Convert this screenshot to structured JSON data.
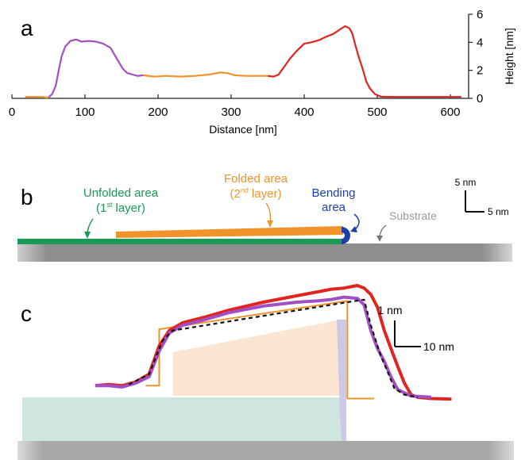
{
  "figure": {
    "panel_labels": [
      "a",
      "b",
      "c"
    ],
    "colors": {
      "purple": "#a24fc6",
      "orange": "#f0932b",
      "red": "#e0241f",
      "green": "#1a9a57",
      "blue": "#1f3fa8",
      "substrate_gray": "#8e8e8e",
      "substrate_text": "#9a9a9a",
      "teal_fill": "#cfe6e0",
      "peach_fill": "#fbe3cf",
      "lavender_fill": "#c9c3e6"
    }
  },
  "chart_data": [
    {
      "panel": "a",
      "type": "line",
      "xlabel": "Distance [nm]",
      "ylabel": "Height [nm]",
      "xlim": [
        0,
        625
      ],
      "ylim": [
        0,
        6
      ],
      "x_ticks": [
        "0",
        "100",
        "200",
        "300",
        "400",
        "500",
        "600"
      ],
      "y_ticks": [
        "0",
        "2",
        "4",
        "6"
      ],
      "y_axis_side": "right",
      "grid": false,
      "series": [
        {
          "color": "orange",
          "points": [
            [
              18,
              0.1
            ],
            [
              25,
              0.1
            ],
            [
              40,
              0.1
            ],
            [
              50,
              0.05
            ]
          ]
        },
        {
          "color": "purple",
          "points": [
            [
              50,
              0.05
            ],
            [
              55,
              0.3
            ],
            [
              60,
              0.9
            ],
            [
              64,
              2.0
            ],
            [
              68,
              3.0
            ],
            [
              73,
              3.7
            ],
            [
              80,
              4.1
            ],
            [
              88,
              4.2
            ],
            [
              95,
              4.05
            ],
            [
              105,
              4.1
            ],
            [
              115,
              4.05
            ],
            [
              125,
              3.9
            ],
            [
              135,
              3.6
            ],
            [
              145,
              2.7
            ],
            [
              152,
              2.1
            ],
            [
              158,
              1.8
            ],
            [
              165,
              1.7
            ],
            [
              172,
              1.6
            ],
            [
              180,
              1.65
            ]
          ]
        },
        {
          "color": "orange",
          "points": [
            [
              180,
              1.65
            ],
            [
              195,
              1.55
            ],
            [
              210,
              1.6
            ],
            [
              230,
              1.55
            ],
            [
              250,
              1.6
            ],
            [
              270,
              1.7
            ],
            [
              285,
              1.85
            ],
            [
              295,
              1.8
            ],
            [
              305,
              1.65
            ],
            [
              320,
              1.6
            ],
            [
              340,
              1.6
            ],
            [
              350,
              1.6
            ]
          ]
        },
        {
          "color": "red",
          "points": [
            [
              350,
              1.6
            ],
            [
              358,
              1.55
            ],
            [
              365,
              1.7
            ],
            [
              372,
              2.2
            ],
            [
              380,
              2.8
            ],
            [
              390,
              3.4
            ],
            [
              400,
              3.9
            ],
            [
              410,
              4.0
            ],
            [
              420,
              4.15
            ],
            [
              430,
              4.4
            ],
            [
              440,
              4.6
            ],
            [
              450,
              4.95
            ],
            [
              456,
              5.15
            ],
            [
              462,
              5.0
            ],
            [
              466,
              4.6
            ],
            [
              470,
              3.8
            ],
            [
              475,
              2.9
            ],
            [
              480,
              2.1
            ],
            [
              485,
              1.2
            ],
            [
              490,
              0.7
            ],
            [
              497,
              0.3
            ],
            [
              505,
              0.12
            ],
            [
              520,
              0.1
            ],
            [
              560,
              0.1
            ],
            [
              600,
              0.1
            ],
            [
              615,
              0.1
            ]
          ]
        }
      ]
    },
    {
      "panel": "b",
      "type": "diagram",
      "labels": {
        "unfolded_line1": "Unfolded area",
        "unfolded_line2": "(1",
        "unfolded_sup": "st",
        "unfolded_line2_end": " layer)",
        "folded_line1": "Folded area",
        "folded_line2": "(2",
        "folded_sup": "nd",
        "folded_line2_end": " layer)",
        "bending_line1": "Bending",
        "bending_line2": "area",
        "substrate": "Substrate",
        "scale_v": "5 nm",
        "scale_h": "5 nm"
      }
    },
    {
      "panel": "c",
      "type": "line",
      "scale_v": "1 nm",
      "scale_h": "10 nm",
      "series": [
        {
          "color": "red",
          "points": [
            [
              0,
              3.85
            ],
            [
              4,
              3.9
            ],
            [
              8,
              3.85
            ],
            [
              12,
              4.0
            ],
            [
              16,
              4.3
            ],
            [
              19,
              5.4
            ],
            [
              22,
              6.0
            ],
            [
              26,
              6.3
            ],
            [
              32,
              6.5
            ],
            [
              40,
              6.8
            ],
            [
              50,
              7.1
            ],
            [
              60,
              7.35
            ],
            [
              66,
              7.5
            ],
            [
              70,
              7.6
            ],
            [
              74,
              7.65
            ],
            [
              78,
              7.75
            ],
            [
              80,
              7.65
            ],
            [
              82,
              7.4
            ],
            [
              84,
              6.9
            ],
            [
              86,
              6.0
            ],
            [
              88,
              5.3
            ],
            [
              90,
              4.6
            ],
            [
              92,
              3.95
            ],
            [
              94,
              3.5
            ],
            [
              96,
              3.4
            ],
            [
              100,
              3.35
            ],
            [
              106,
              3.33
            ]
          ]
        },
        {
          "color": "purple",
          "points": [
            [
              0,
              3.85
            ],
            [
              4,
              3.85
            ],
            [
              8,
              3.8
            ],
            [
              12,
              3.95
            ],
            [
              16,
              4.2
            ],
            [
              19,
              5.2
            ],
            [
              22,
              5.9
            ],
            [
              26,
              6.2
            ],
            [
              32,
              6.4
            ],
            [
              40,
              6.7
            ],
            [
              50,
              6.95
            ],
            [
              60,
              7.1
            ],
            [
              66,
              7.15
            ],
            [
              70,
              7.2
            ],
            [
              74,
              7.3
            ],
            [
              78,
              7.25
            ],
            [
              80,
              7.0
            ],
            [
              82,
              6.0
            ],
            [
              84,
              5.3
            ],
            [
              86,
              4.8
            ],
            [
              88,
              4.2
            ],
            [
              90,
              3.7
            ],
            [
              94,
              3.45
            ],
            [
              100,
              3.4
            ]
          ]
        },
        {
          "color": "black_dashed",
          "points": [
            [
              10,
              3.9
            ],
            [
              16,
              4.3
            ],
            [
              20,
              5.6
            ],
            [
              23,
              6.0
            ],
            [
              28,
              6.1
            ],
            [
              75,
              7.1
            ],
            [
              80,
              7.2
            ],
            [
              82,
              6.2
            ],
            [
              85,
              5.0
            ],
            [
              87,
              4.4
            ],
            [
              89,
              3.75
            ],
            [
              92,
              3.5
            ],
            [
              96,
              3.4
            ]
          ]
        },
        {
          "color": "orange_step",
          "points": [
            [
              15,
              3.85
            ],
            [
              19,
              3.85
            ],
            [
              19,
              6.05
            ],
            [
              75,
              7.15
            ],
            [
              75,
              3.35
            ],
            [
              83,
              3.35
            ]
          ]
        }
      ]
    }
  ]
}
